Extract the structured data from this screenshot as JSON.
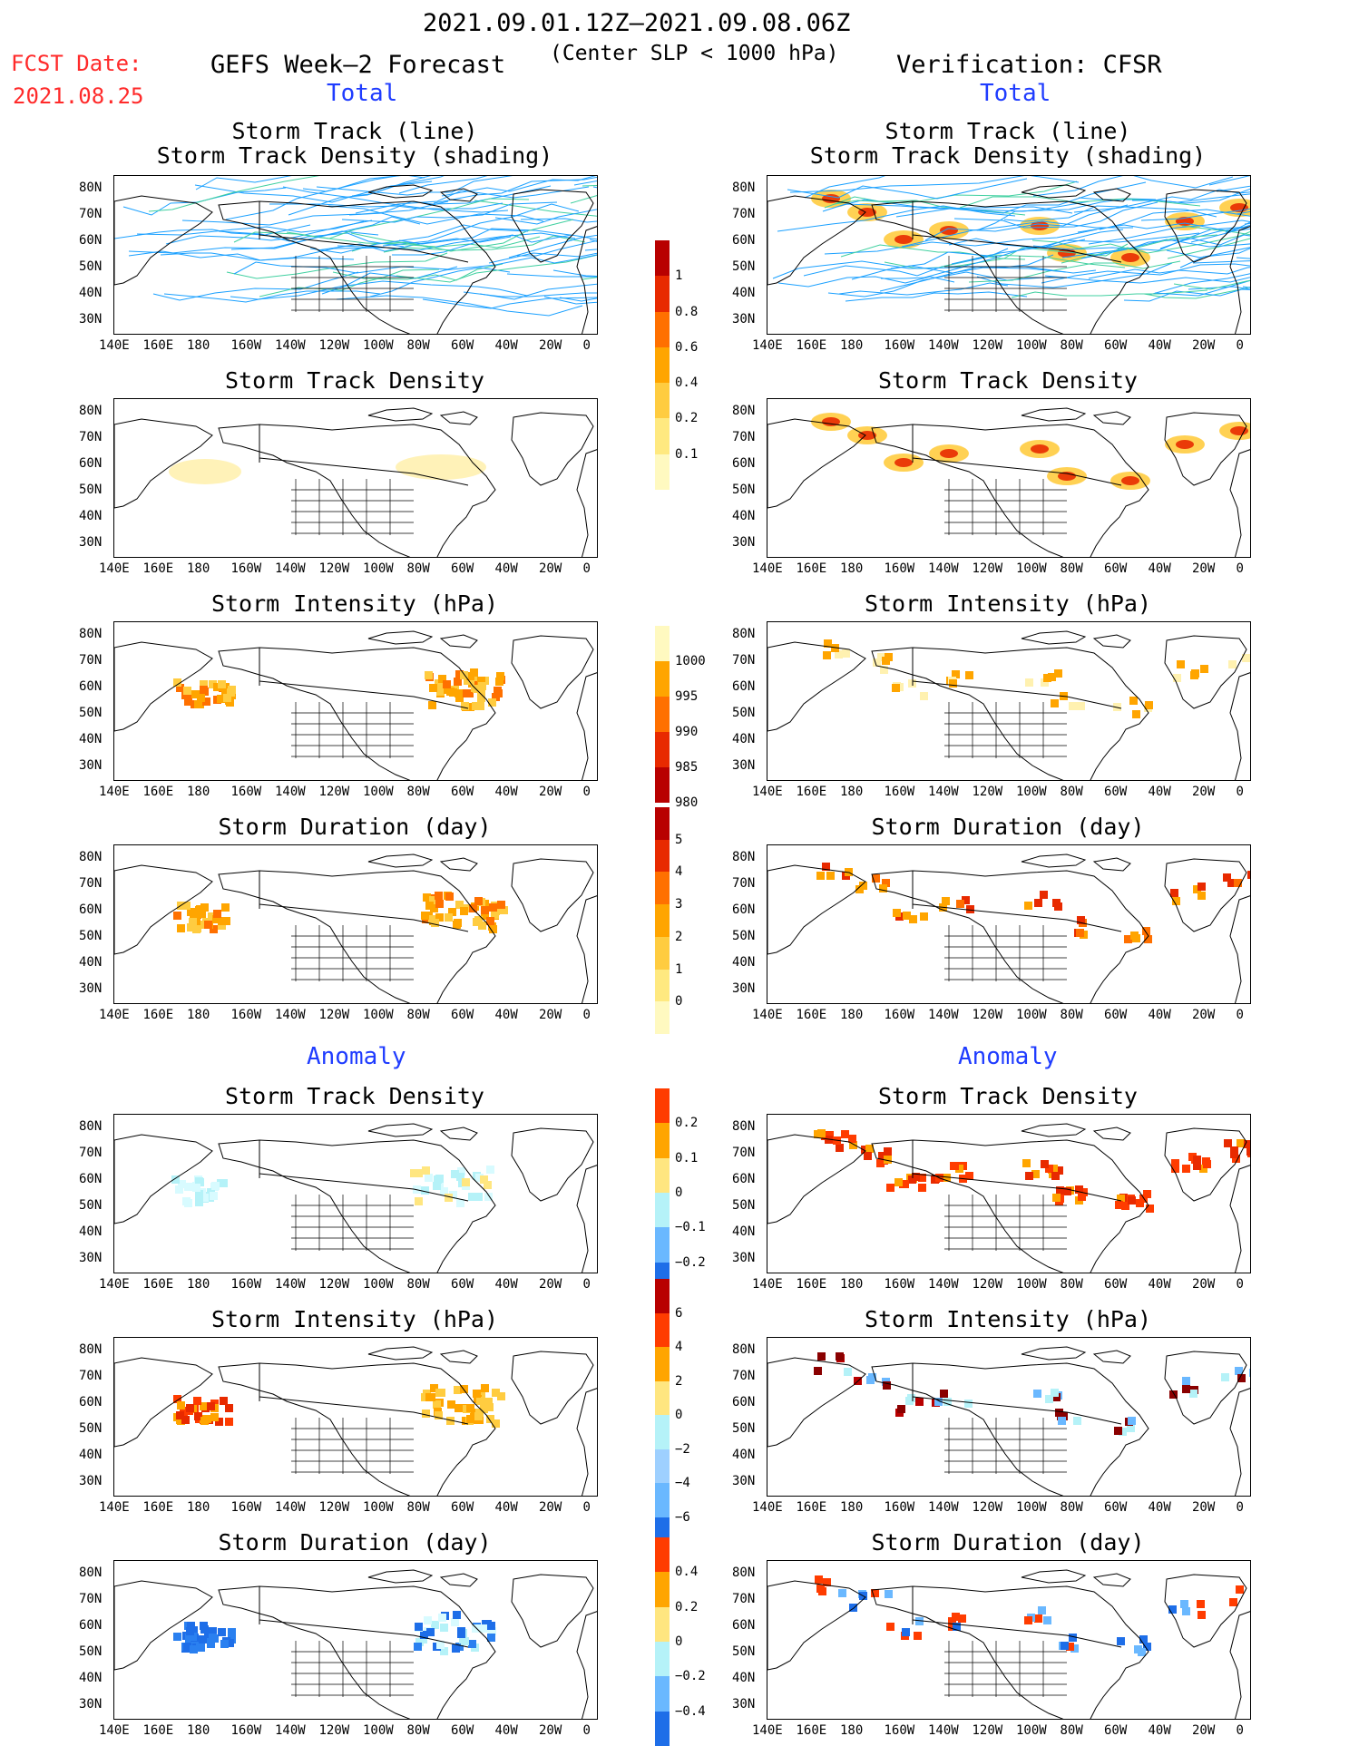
{
  "header": {
    "period": "2021.09.01.12Z–2021.09.08.06Z",
    "condition": "(Center SLP < 1000 hPa)",
    "fcst_label": "FCST Date:",
    "fcst_date": "2021.08.25",
    "left_title": "GEFS Week–2 Forecast",
    "right_title": "Verification: CFSR",
    "total_label": "Total",
    "anomaly_label": "Anomaly"
  },
  "panel_titles": {
    "track": [
      "Storm Track (line)",
      "Storm Track Density (shading)"
    ],
    "density": "Storm Track Density",
    "intensity": "Storm Intensity (hPa)",
    "duration": "Storm Duration (day)"
  },
  "axes": {
    "lon_labels": [
      "140E",
      "160E",
      "180",
      "160W",
      "140W",
      "120W",
      "100W",
      "80W",
      "60W",
      "40W",
      "20W",
      "0"
    ],
    "lat_labels": [
      "80N",
      "70N",
      "60N",
      "50N",
      "40N",
      "30N"
    ]
  },
  "colorbars": {
    "total_density": {
      "labels": [
        "1",
        "0.8",
        "0.6",
        "0.4",
        "0.2",
        "0.1"
      ],
      "colors": [
        "#b80000",
        "#e82a00",
        "#ff7000",
        "#ffa500",
        "#ffcc40",
        "#ffe980",
        "#fff9c0"
      ]
    },
    "total_intensity": {
      "labels": [
        "1000",
        "995",
        "990",
        "985",
        "980"
      ],
      "colors": [
        "#fff9c0",
        "#ffa500",
        "#ff7000",
        "#e82a00",
        "#b80000"
      ]
    },
    "total_duration": {
      "labels": [
        "5",
        "4",
        "3",
        "2",
        "1",
        "0"
      ],
      "colors": [
        "#b80000",
        "#e82a00",
        "#ff7000",
        "#ffa500",
        "#ffcc40",
        "#ffe980",
        "#fff9c0"
      ]
    },
    "anom_density": {
      "labels": [
        "0.2",
        "0.1",
        "0",
        "−0.1",
        "−0.2"
      ],
      "colors": [
        "#ff3c00",
        "#ffa500",
        "#ffe680",
        "#b5f2f8",
        "#6ab8ff",
        "#1e6ee8"
      ]
    },
    "anom_intensity": {
      "labels": [
        "6",
        "4",
        "2",
        "0",
        "−2",
        "−4",
        "−6"
      ],
      "colors": [
        "#b80000",
        "#ff3c00",
        "#ffa500",
        "#ffe680",
        "#b5f2f8",
        "#9ed0ff",
        "#6ab8ff",
        "#1e6ee8"
      ]
    },
    "anom_duration": {
      "labels": [
        "0.4",
        "0.2",
        "0",
        "−0.2",
        "−0.4"
      ],
      "colors": [
        "#ff3c00",
        "#ffa500",
        "#ffe680",
        "#b5f2f8",
        "#6ab8ff",
        "#1e6ee8"
      ]
    }
  }
}
